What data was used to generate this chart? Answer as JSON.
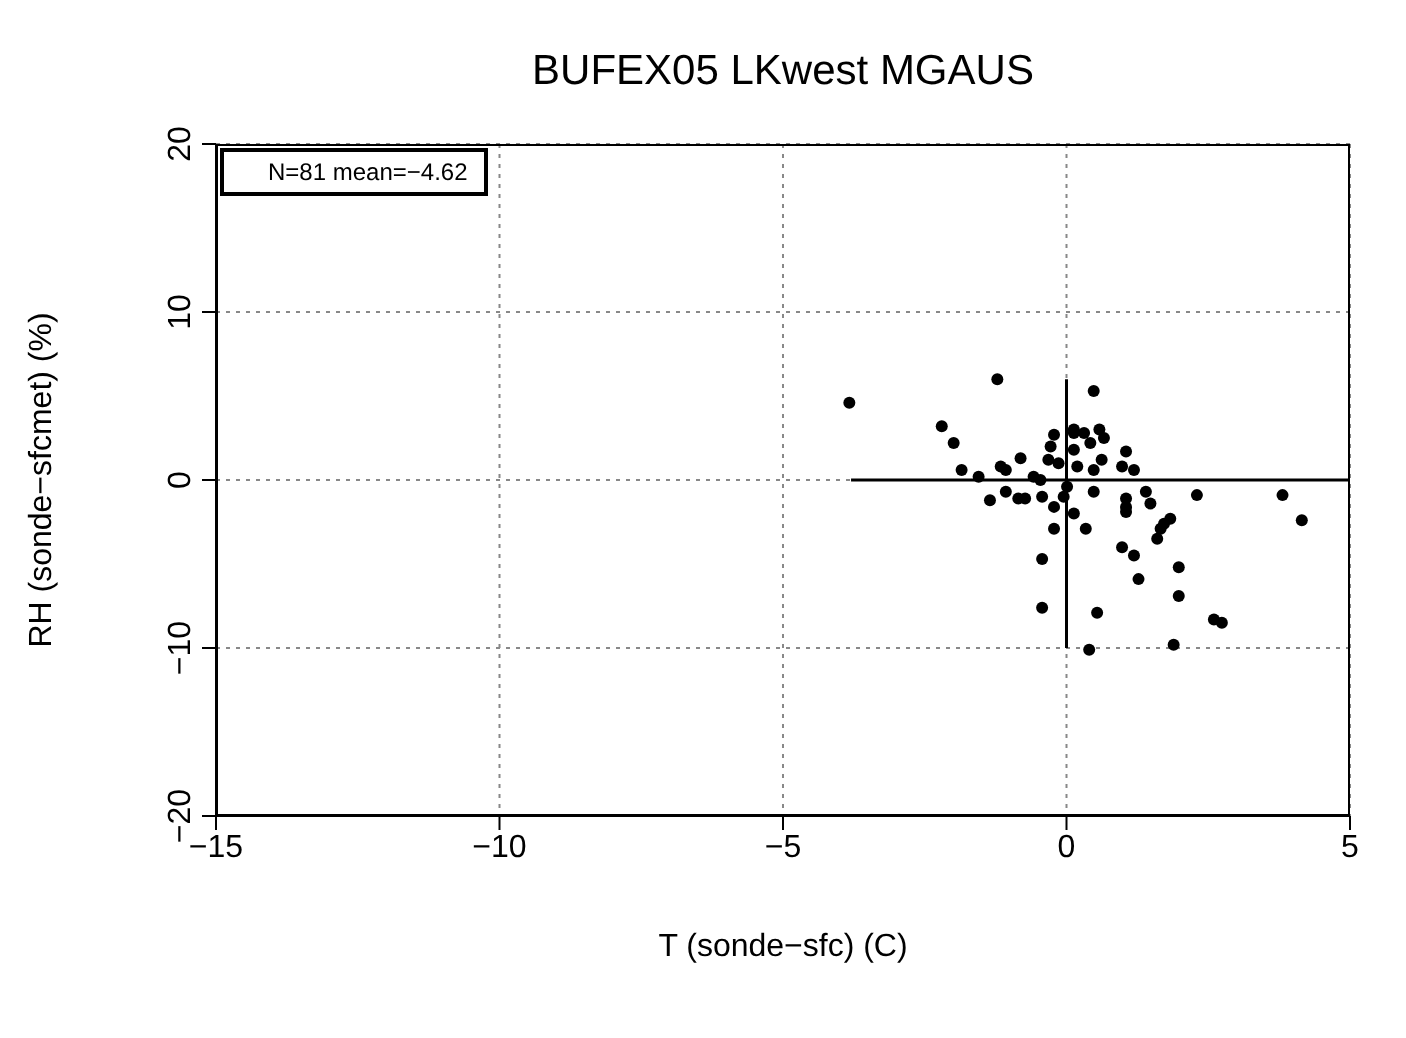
{
  "chart_data": {
    "type": "scatter",
    "title": "BUFEX05 LKwest MGAUS",
    "xlabel": "T (sonde−sfc) (C)",
    "ylabel": "RH (sonde−sfcmet) (%)",
    "annotations": [
      "N=81 mean=−4.62"
    ],
    "xlim": [
      -15,
      5
    ],
    "xticks": [
      -15,
      -10,
      -5,
      0,
      5
    ],
    "ylim": [
      -20,
      20
    ],
    "yticks": [
      -20,
      -10,
      0,
      10,
      20
    ],
    "grid": true,
    "marker": "circle",
    "series": [
      {
        "type": "scatter",
        "color": "#000000",
        "x": [
          -3.83,
          -1.22,
          -2.2,
          -1.99,
          -1.85,
          -1.55,
          -1.16,
          -1.07,
          -0.81,
          -1.35,
          -1.07,
          -0.85,
          -0.73,
          -0.58,
          -0.46,
          -0.43,
          -0.22,
          -0.28,
          -0.32,
          -0.14,
          -0.22,
          -0.22,
          -0.05,
          0.01,
          0.13,
          -0.43,
          -0.43,
          0.4,
          0.34,
          0.48,
          0.48,
          0.54,
          0.13,
          0.19,
          0.13,
          0.31,
          0.42,
          0.58,
          0.66,
          0.13,
          0.62,
          0.48,
          1.05,
          0.98,
          1.19,
          1.05,
          1.05,
          1.05,
          1.4,
          1.48,
          2.3,
          3.81,
          4.15,
          1.83,
          1.72,
          1.66,
          1.6,
          0.98,
          1.19,
          1.27,
          1.98,
          1.98,
          2.6,
          2.74,
          1.89
        ],
        "values": [
          4.6,
          6.0,
          3.2,
          2.2,
          0.6,
          0.2,
          0.8,
          0.6,
          1.3,
          -1.2,
          -0.7,
          -1.1,
          -1.1,
          0.2,
          0,
          -1.0,
          2.7,
          2.0,
          1.2,
          1.0,
          -1.6,
          -2.9,
          -1.0,
          -0.4,
          -2.0,
          -4.7,
          -7.6,
          -10.1,
          -2.9,
          5.3,
          -0.7,
          -7.9,
          2.8,
          0.8,
          3.0,
          2.8,
          2.2,
          3.0,
          2.5,
          1.8,
          1.2,
          0.6,
          1.7,
          0.8,
          0.6,
          -1.1,
          -1.6,
          -1.9,
          -0.7,
          -1.4,
          -0.9,
          -0.9,
          -2.4,
          -2.3,
          -2.6,
          -2.9,
          -3.5,
          -4.0,
          -4.5,
          -5.9,
          -5.2,
          -6.9,
          -8.3,
          -8.5,
          -9.8
        ]
      },
      {
        "type": "line",
        "color": "#000000",
        "marker": "none",
        "x": [
          -3.8,
          5
        ],
        "values": [
          0,
          0
        ]
      },
      {
        "type": "line",
        "color": "#000000",
        "marker": "none",
        "x": [
          0,
          0
        ],
        "values": [
          6,
          -10
        ]
      }
    ]
  }
}
